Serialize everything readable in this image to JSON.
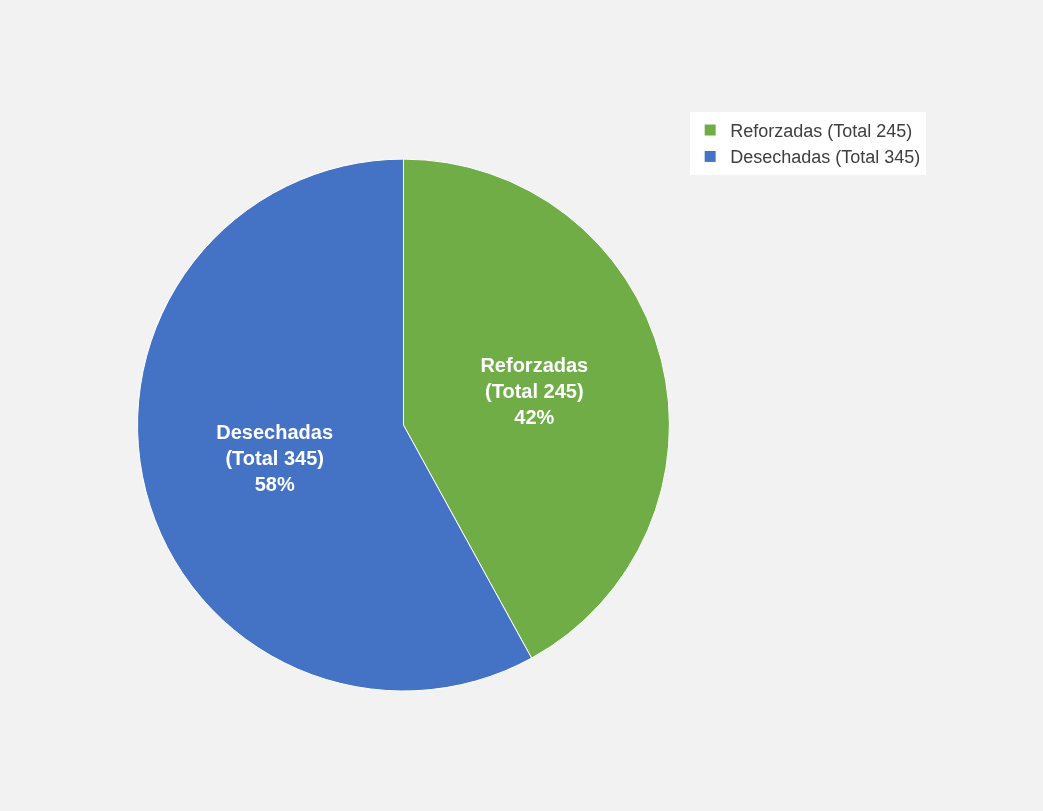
{
  "chart_data": {
    "type": "pie",
    "categories": [
      "Reforzadas (Total 245)",
      "Desechadas (Total 345)"
    ],
    "values": [
      42,
      58
    ],
    "value_labels": [
      "42%",
      "58%"
    ],
    "colors": [
      "#70ad47",
      "#4472c4"
    ],
    "legend": "top right"
  }
}
